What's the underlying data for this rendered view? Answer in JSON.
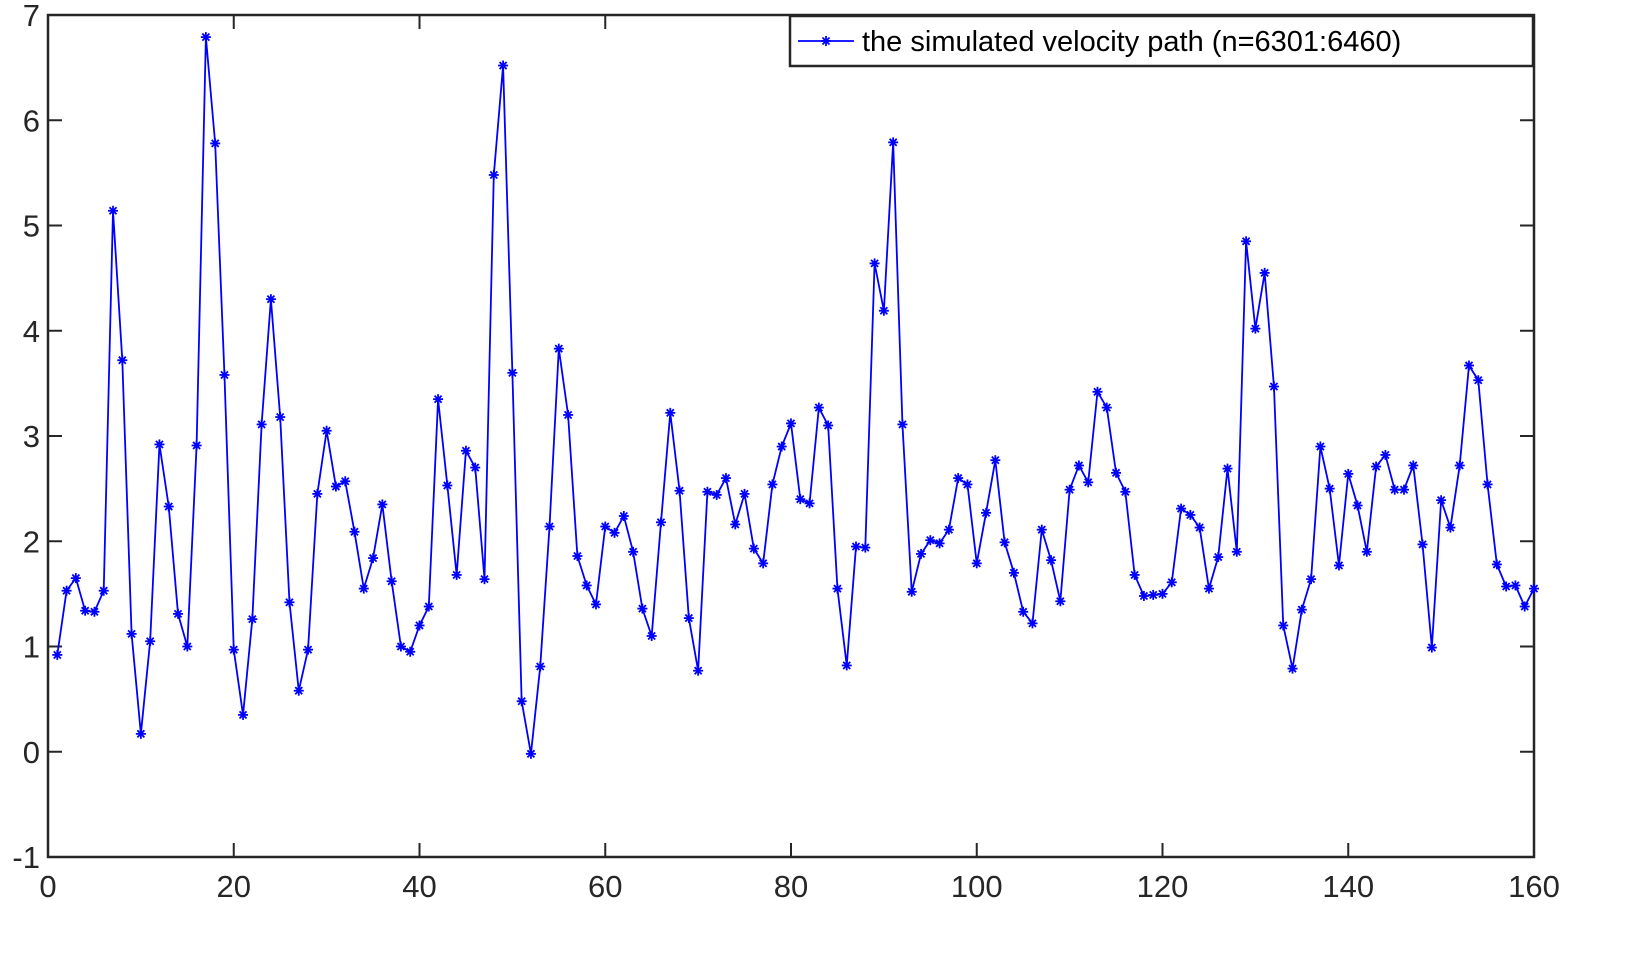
{
  "chart_data": {
    "type": "line",
    "title": "",
    "xlabel": "",
    "ylabel": "",
    "xlim": [
      0,
      160
    ],
    "ylim": [
      -1,
      7
    ],
    "xticks": [
      0,
      20,
      40,
      60,
      80,
      100,
      120,
      140,
      160
    ],
    "yticks": [
      -1,
      0,
      1,
      2,
      3,
      4,
      5,
      6,
      7
    ],
    "xtick_labels": [
      "0",
      "20",
      "40",
      "60",
      "80",
      "100",
      "120",
      "140",
      "160"
    ],
    "ytick_labels": [
      "-1",
      "0",
      "1",
      "2",
      "3",
      "4",
      "5",
      "6",
      "7"
    ],
    "grid": false,
    "legend_position": "top-right",
    "series": [
      {
        "name": "the simulated velocity path (n=6301:6460)",
        "color": "#0000ff",
        "marker": "asterisk",
        "x": [
          1,
          2,
          3,
          4,
          5,
          6,
          7,
          8,
          9,
          10,
          11,
          12,
          13,
          14,
          15,
          16,
          17,
          18,
          19,
          20,
          21,
          22,
          23,
          24,
          25,
          26,
          27,
          28,
          29,
          30,
          31,
          32,
          33,
          34,
          35,
          36,
          37,
          38,
          39,
          40,
          41,
          42,
          43,
          44,
          45,
          46,
          47,
          48,
          49,
          50,
          51,
          52,
          53,
          54,
          55,
          56,
          57,
          58,
          59,
          60,
          61,
          62,
          63,
          64,
          65,
          66,
          67,
          68,
          69,
          70,
          71,
          72,
          73,
          74,
          75,
          76,
          77,
          78,
          79,
          80,
          81,
          82,
          83,
          84,
          85,
          86,
          87,
          88,
          89,
          90,
          91,
          92,
          93,
          94,
          95,
          96,
          97,
          98,
          99,
          100,
          101,
          102,
          103,
          104,
          105,
          106,
          107,
          108,
          109,
          110,
          111,
          112,
          113,
          114,
          115,
          116,
          117,
          118,
          119,
          120,
          121,
          122,
          123,
          124,
          125,
          126,
          127,
          128,
          129,
          130,
          131,
          132,
          133,
          134,
          135,
          136,
          137,
          138,
          139,
          140,
          141,
          142,
          143,
          144,
          145,
          146,
          147,
          148,
          149,
          150,
          151,
          152,
          153,
          154,
          155,
          156,
          157,
          158,
          159,
          160
        ],
        "values": [
          0.92,
          1.53,
          1.65,
          1.34,
          1.33,
          1.53,
          5.14,
          3.72,
          1.12,
          0.17,
          1.05,
          2.92,
          2.33,
          1.31,
          1.0,
          2.91,
          6.79,
          5.78,
          3.58,
          0.97,
          0.35,
          1.26,
          3.11,
          4.3,
          3.18,
          1.42,
          0.58,
          0.97,
          2.45,
          3.05,
          2.52,
          2.57,
          2.09,
          1.55,
          1.84,
          2.35,
          1.62,
          1.0,
          0.95,
          1.2,
          1.38,
          3.35,
          2.53,
          1.68,
          2.86,
          2.7,
          1.64,
          5.48,
          6.52,
          3.6,
          0.48,
          -0.02,
          0.81,
          2.14,
          3.83,
          3.2,
          1.86,
          1.58,
          1.4,
          2.14,
          2.08,
          2.24,
          1.9,
          1.36,
          1.1,
          2.18,
          3.22,
          2.48,
          1.27,
          0.77,
          2.47,
          2.44,
          2.6,
          2.16,
          2.45,
          1.93,
          1.79,
          2.54,
          2.9,
          3.12,
          2.4,
          2.36,
          3.27,
          3.1,
          1.55,
          0.82,
          1.95,
          1.94,
          4.64,
          4.19,
          5.79,
          3.11,
          1.52,
          1.88,
          2.01,
          1.98,
          2.11,
          2.6,
          2.54,
          1.79,
          2.27,
          2.77,
          1.99,
          1.7,
          1.33,
          1.22,
          2.11,
          1.82,
          1.43,
          2.49,
          2.72,
          2.56,
          3.42,
          3.27,
          2.65,
          2.47,
          1.68,
          1.48,
          1.49,
          1.5,
          1.61,
          2.31,
          2.25,
          2.13,
          1.55,
          1.85,
          2.69,
          1.9,
          4.85,
          4.02,
          4.55,
          3.47,
          1.2,
          0.79,
          1.35,
          1.64,
          2.9,
          2.5,
          1.77,
          2.64,
          2.34,
          1.9,
          2.71,
          2.82,
          2.49,
          2.49,
          2.72,
          1.97,
          0.99,
          2.39,
          2.13,
          2.72,
          3.67,
          3.53,
          2.54,
          1.78,
          1.57,
          1.58,
          1.38,
          1.55
        ]
      }
    ]
  }
}
